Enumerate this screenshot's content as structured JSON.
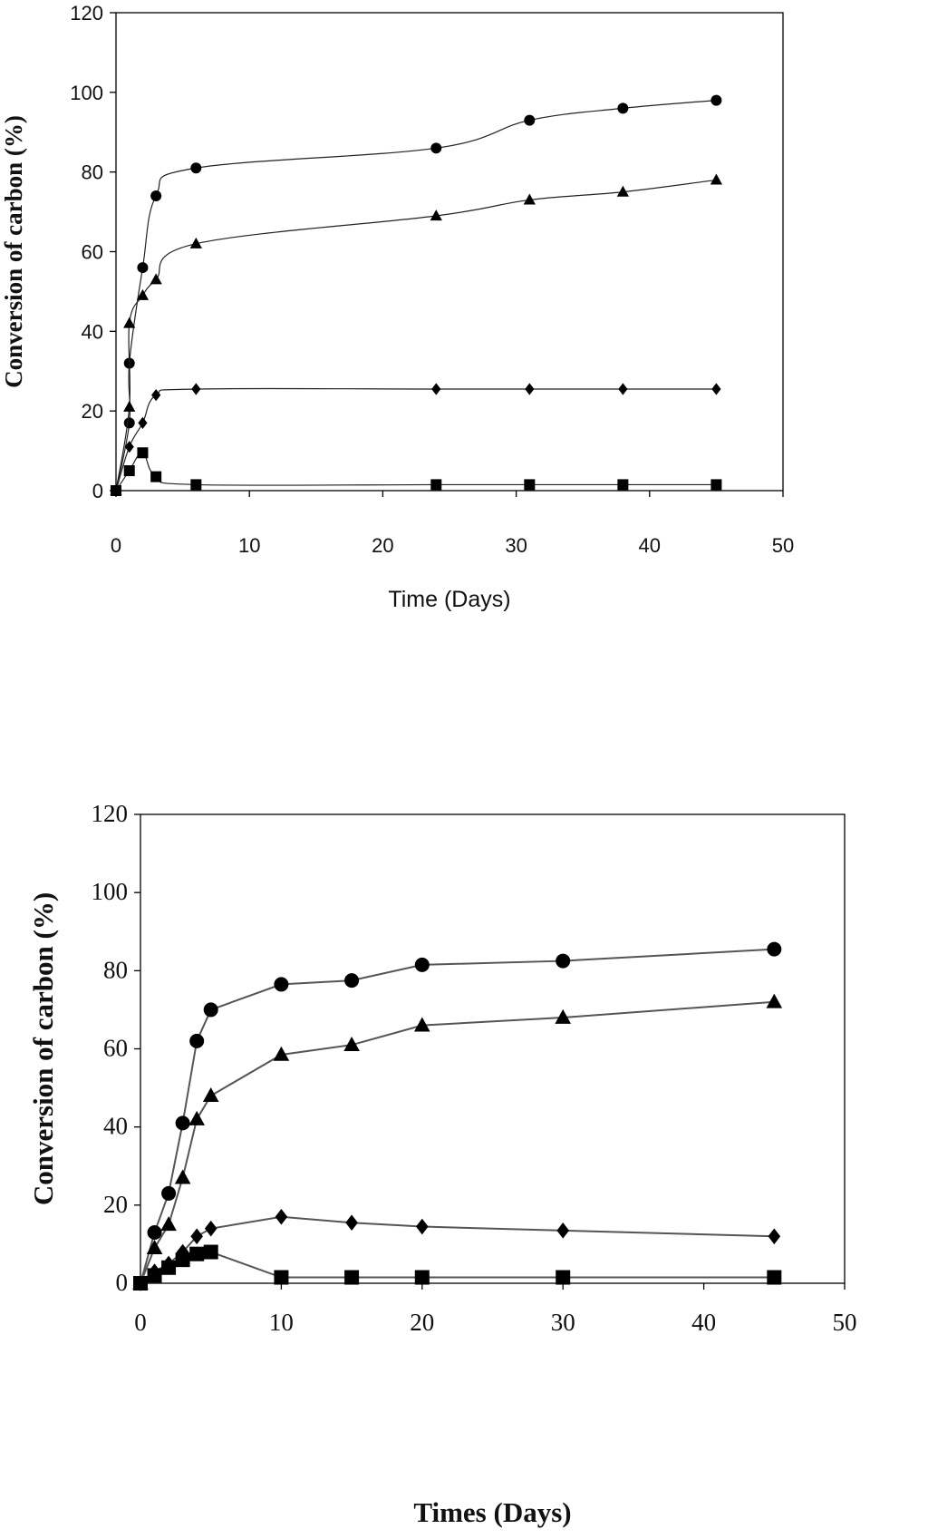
{
  "chart_data": [
    {
      "type": "line",
      "title": "",
      "xlabel": "Time (Days)",
      "ylabel": "Conversion of carbon (%)",
      "xlim": [
        0,
        50
      ],
      "ylim": [
        0,
        120
      ],
      "xticks": [
        "0",
        "10",
        "20",
        "30",
        "40",
        "50"
      ],
      "yticks": [
        "0",
        "20",
        "40",
        "60",
        "80",
        "100",
        "120"
      ],
      "grid": false,
      "legend": "none",
      "series": [
        {
          "name": "circle",
          "marker": "circle",
          "x": [
            0,
            1,
            1,
            2,
            3,
            6,
            24,
            31,
            38,
            45
          ],
          "y": [
            0,
            17,
            32,
            56,
            74,
            81,
            86,
            93,
            96,
            98
          ]
        },
        {
          "name": "triangle",
          "marker": "triangle",
          "x": [
            0,
            1,
            1,
            2,
            3,
            6,
            24,
            31,
            38,
            45
          ],
          "y": [
            0,
            21,
            42,
            49,
            53,
            62,
            69,
            73,
            75,
            78
          ]
        },
        {
          "name": "diamond",
          "marker": "diamond",
          "x": [
            0,
            1,
            2,
            3,
            6,
            24,
            31,
            38,
            45
          ],
          "y": [
            0,
            11,
            17,
            24,
            25.5,
            25.5,
            25.5,
            25.5,
            25.5
          ]
        },
        {
          "name": "square",
          "marker": "square",
          "x": [
            0,
            1,
            2,
            3,
            6,
            24,
            31,
            38,
            45
          ],
          "y": [
            0,
            5,
            9.5,
            3.5,
            1.5,
            1.5,
            1.5,
            1.5,
            1.5
          ]
        }
      ]
    },
    {
      "type": "line",
      "title": "",
      "xlabel": "Times (Days)",
      "ylabel": "Conversion of carbon (%)",
      "xlim": [
        0,
        50
      ],
      "ylim": [
        0,
        120
      ],
      "xticks": [
        "0",
        "10",
        "20",
        "30",
        "40",
        "50"
      ],
      "yticks": [
        "0",
        "20",
        "40",
        "60",
        "80",
        "100",
        "120"
      ],
      "grid": false,
      "legend": "none",
      "series": [
        {
          "name": "circle",
          "marker": "circle",
          "x": [
            0,
            1,
            2,
            3,
            4,
            5,
            10,
            15,
            20,
            30,
            45
          ],
          "y": [
            0,
            13,
            23,
            41,
            62,
            70,
            76.5,
            77.5,
            81.5,
            82.5,
            85.5
          ]
        },
        {
          "name": "triangle",
          "marker": "triangle",
          "x": [
            0,
            1,
            2,
            3,
            4,
            5,
            10,
            15,
            20,
            30,
            45
          ],
          "y": [
            0,
            9,
            15,
            27,
            42,
            48,
            58.5,
            61,
            66,
            68,
            72
          ]
        },
        {
          "name": "diamond",
          "marker": "diamond",
          "x": [
            0,
            1,
            2,
            3,
            4,
            5,
            10,
            15,
            20,
            30,
            45
          ],
          "y": [
            0,
            3,
            5,
            8,
            12,
            14,
            17,
            15.5,
            14.5,
            13.5,
            12
          ]
        },
        {
          "name": "square",
          "marker": "square",
          "x": [
            0,
            1,
            2,
            3,
            4,
            5,
            10,
            15,
            20,
            30,
            45
          ],
          "y": [
            0,
            2,
            4,
            6,
            7.5,
            8,
            1.5,
            1.5,
            1.5,
            1.5,
            1.5
          ]
        }
      ]
    }
  ]
}
